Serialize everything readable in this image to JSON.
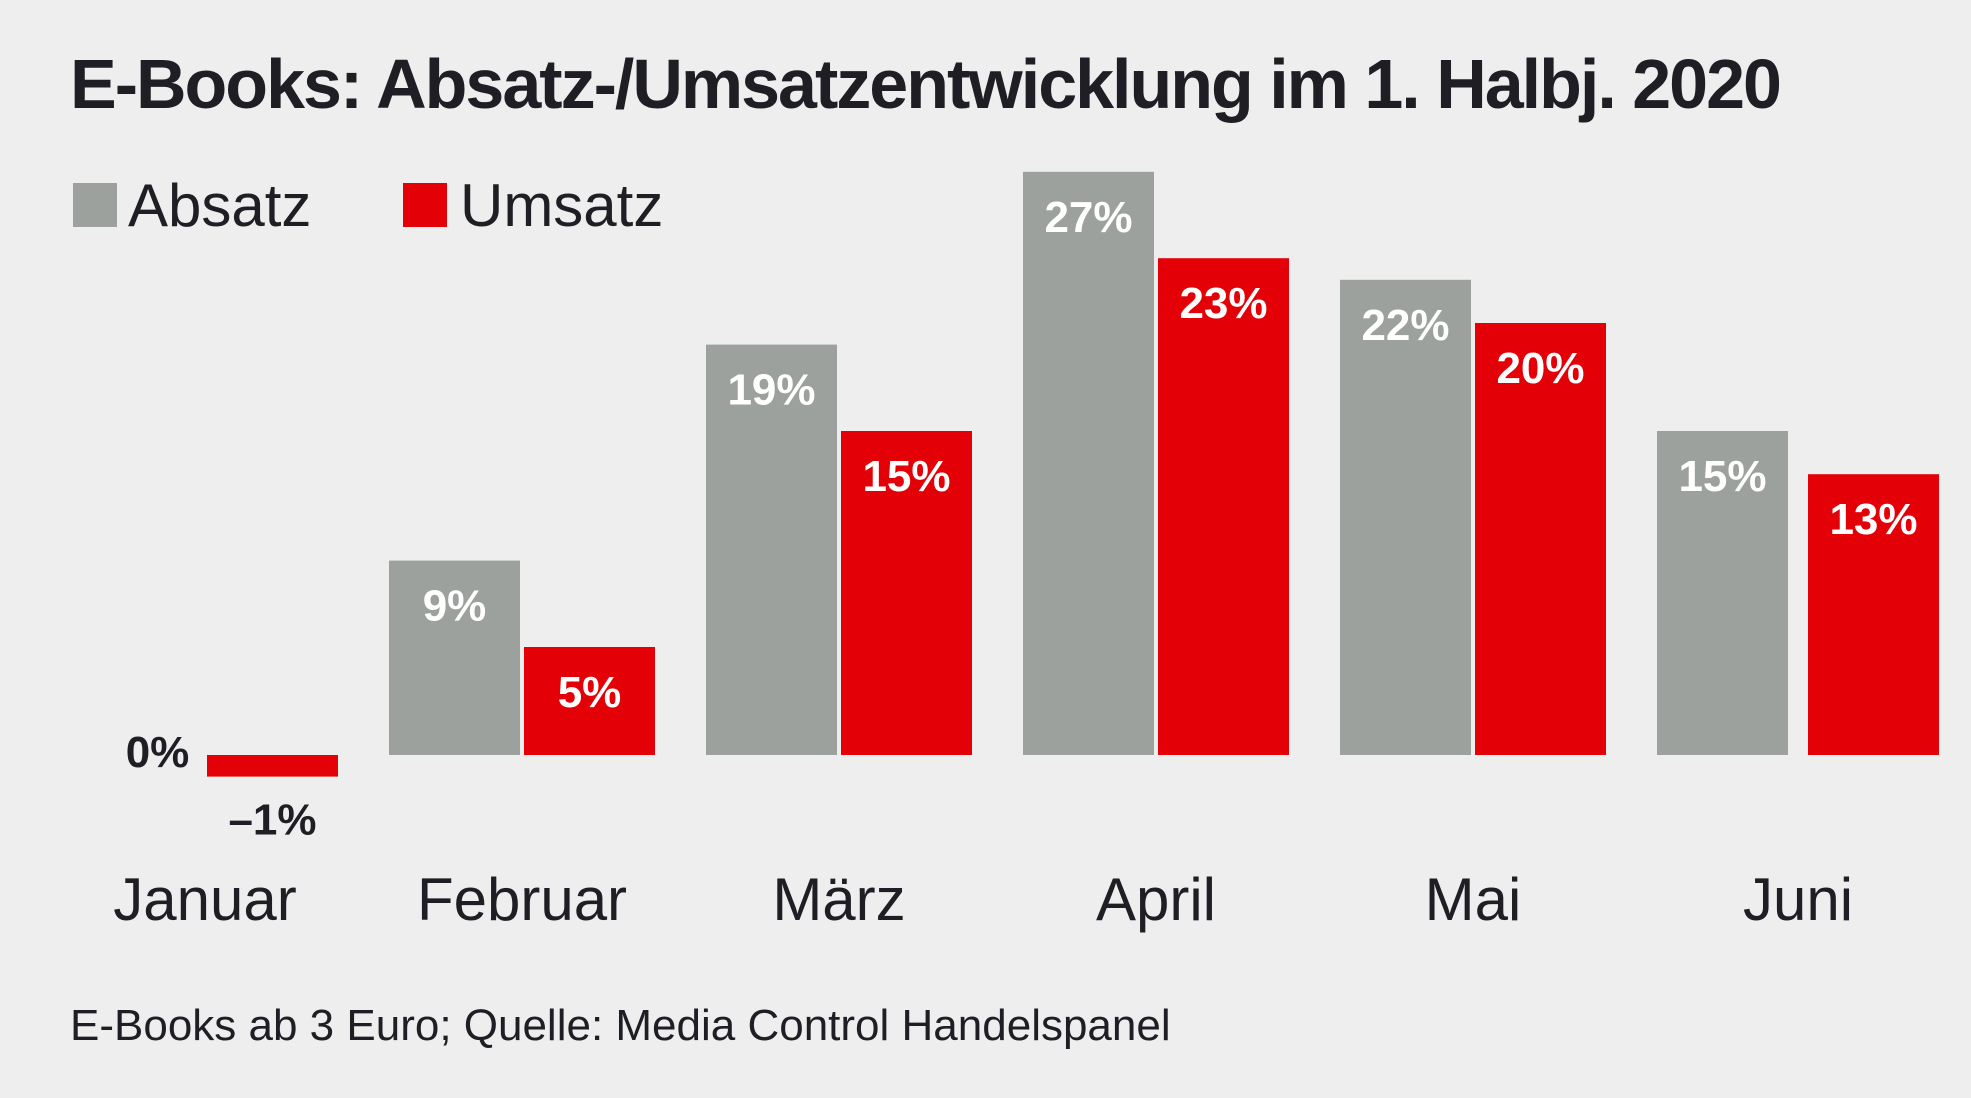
{
  "chart_data": {
    "type": "bar",
    "title": "E-Books: Absatz-/Umsatzentwicklung im 1. Halbj. 2020",
    "categories": [
      "Januar",
      "Februar",
      "März",
      "April",
      "Mai",
      "Juni"
    ],
    "series": [
      {
        "name": "Absatz",
        "color": "#9da19d",
        "values": [
          0,
          9,
          19,
          27,
          22,
          15
        ],
        "labels": [
          "0%",
          "9%",
          "19%",
          "27%",
          "22%",
          "15%"
        ]
      },
      {
        "name": "Umsatz",
        "color": "#e30006",
        "values": [
          -1,
          5,
          15,
          23,
          20,
          13
        ],
        "labels": [
          "–1%",
          "5%",
          "15%",
          "23%",
          "20%",
          "13%"
        ]
      }
    ],
    "ylim": [
      -1,
      27
    ],
    "grid": false,
    "legend_position": "top-left",
    "xlabel": "",
    "ylabel": "",
    "footnote": "E-Books ab 3 Euro; Quelle: Media Control Handelspanel"
  }
}
